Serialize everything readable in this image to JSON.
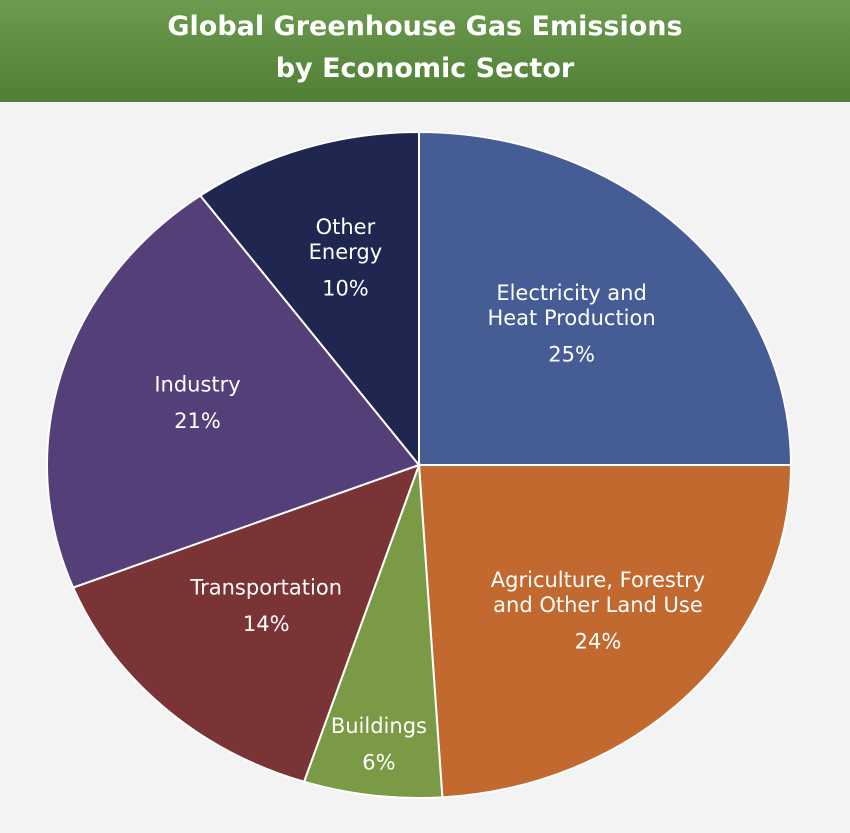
{
  "chart_data": {
    "type": "pie",
    "title": "Global Greenhouse Gas Emissions\nby Economic Sector",
    "categories": [
      "Electricity and\nHeat Production",
      "Agriculture, Forestry\nand Other Land Use",
      "Buildings",
      "Transportation",
      "Industry",
      "Other\nEnergy"
    ],
    "values": [
      25,
      24,
      6,
      14,
      21,
      10
    ],
    "value_labels": [
      "25%",
      "24%",
      "6%",
      "14%",
      "21%",
      "10%"
    ],
    "colors": [
      "#465c94",
      "#c1692f",
      "#7b9a45",
      "#7a3436",
      "#553f79",
      "#1f2650"
    ]
  }
}
